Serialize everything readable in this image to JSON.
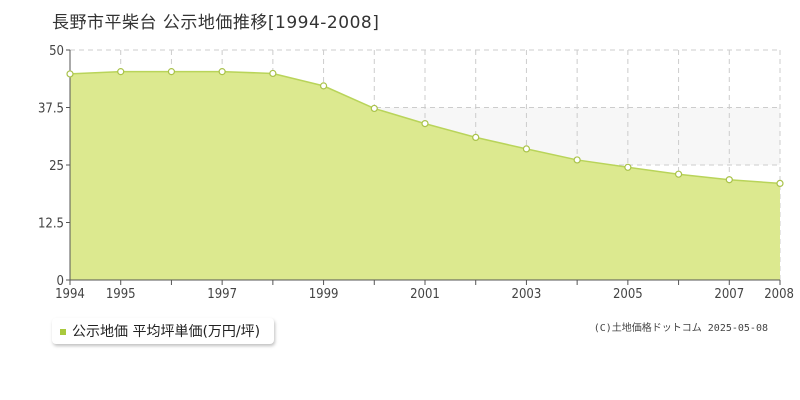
{
  "title": "長野市平柴台 公示地価推移[1994-2008]",
  "legend_label": "公示地価 平均坪単価(万円/坪)",
  "copyright": "(C)土地価格ドットコム 2025-05-08",
  "colors": {
    "fill": "#dce98f",
    "line": "#b9d45a",
    "point_stroke": "#a9c24a",
    "grid": "#cccccc",
    "band": "#f7f7f7",
    "swatch": "#a9c93d"
  },
  "chart_data": {
    "type": "area",
    "title": "長野市平柴台 公示地価推移[1994-2008]",
    "x": [
      1994,
      1995,
      1996,
      1997,
      1998,
      1999,
      2000,
      2001,
      2002,
      2003,
      2004,
      2005,
      2006,
      2007,
      2008
    ],
    "x_tick_labels": [
      "1994",
      "1995",
      "1997",
      "1999",
      "2001",
      "2003",
      "2005",
      "2007",
      "2008"
    ],
    "x_tick_values": [
      1994,
      1995,
      1997,
      1999,
      2001,
      2003,
      2005,
      2007,
      2008
    ],
    "y_tick_labels": [
      "0",
      "12.5",
      "25",
      "37.5",
      "50"
    ],
    "y_tick_values": [
      0,
      12.5,
      25,
      37.5,
      50
    ],
    "ylim": [
      0,
      50
    ],
    "xlim": [
      1994,
      2008
    ],
    "grid": true,
    "legend_position": "bottom-left",
    "series": [
      {
        "name": "公示地価 平均坪単価(万円/坪)",
        "values": [
          44.8,
          45.3,
          45.3,
          45.3,
          44.9,
          42.2,
          37.3,
          34.0,
          31.0,
          28.5,
          26.1,
          24.5,
          23.0,
          21.8,
          21.0
        ]
      }
    ]
  }
}
